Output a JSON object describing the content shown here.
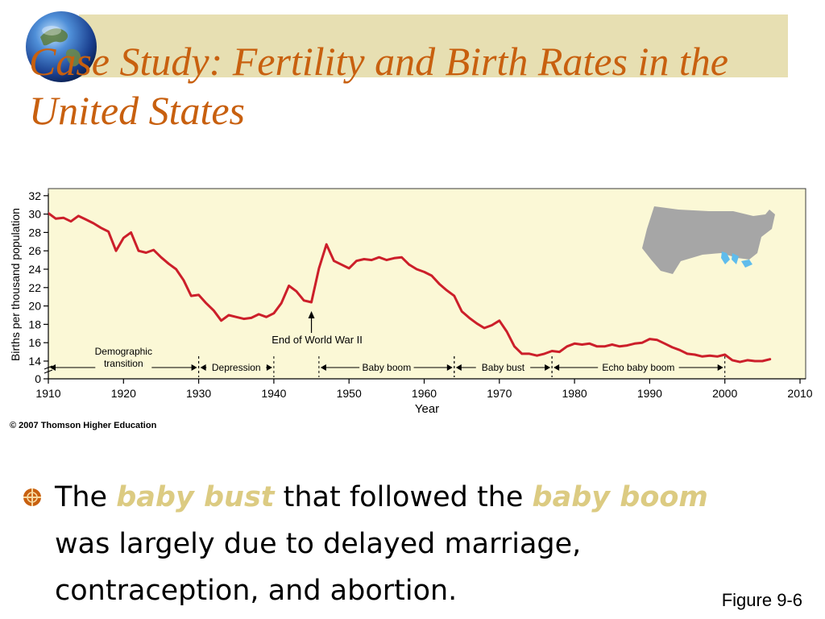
{
  "title": "Case Study: Fertility and Birth Rates in the United States",
  "bullet": {
    "part1": "The",
    "em1": "baby bust",
    "part2": "that followed the",
    "em2": "baby boom",
    "part3": "was largely due to delayed marriage, contraception, and abortion."
  },
  "figure_label": "Figure 9-6",
  "copyright": "© 2007 Thomson Higher Education",
  "chart_data": {
    "type": "line",
    "title": "",
    "xlabel": "Year",
    "ylabel": "Births per thousand population",
    "xlim": [
      1910,
      2010
    ],
    "ylim": [
      0,
      32
    ],
    "x_ticks": [
      1910,
      1920,
      1930,
      1940,
      1950,
      1960,
      1970,
      1980,
      1990,
      2000,
      2010
    ],
    "y_ticks": [
      0,
      14,
      16,
      18,
      20,
      22,
      24,
      26,
      28,
      30,
      32
    ],
    "axis_break": true,
    "grid": false,
    "legend": "none",
    "series": [
      {
        "color": "#cc1f2a",
        "x": [
          1910,
          1911,
          1912,
          1913,
          1914,
          1915,
          1916,
          1917,
          1918,
          1919,
          1920,
          1921,
          1922,
          1923,
          1924,
          1925,
          1926,
          1927,
          1928,
          1929,
          1930,
          1931,
          1932,
          1933,
          1934,
          1935,
          1936,
          1937,
          1938,
          1939,
          1940,
          1941,
          1942,
          1943,
          1944,
          1945,
          1946,
          1947,
          1948,
          1949,
          1950,
          1951,
          1952,
          1953,
          1954,
          1955,
          1956,
          1957,
          1958,
          1959,
          1960,
          1961,
          1962,
          1963,
          1964,
          1965,
          1966,
          1967,
          1968,
          1969,
          1970,
          1971,
          1972,
          1973,
          1974,
          1975,
          1976,
          1977,
          1978,
          1979,
          1980,
          1981,
          1982,
          1983,
          1984,
          1985,
          1986,
          1987,
          1988,
          1989,
          1990,
          1991,
          1992,
          1993,
          1994,
          1995,
          1996,
          1997,
          1998,
          1999,
          2000,
          2001,
          2002,
          2003,
          2004,
          2005,
          2006
        ],
        "y": [
          30.1,
          29.5,
          29.6,
          29.2,
          29.8,
          29.4,
          29.0,
          28.5,
          28.1,
          26.0,
          27.4,
          28.0,
          26.0,
          25.8,
          26.1,
          25.3,
          24.6,
          24.0,
          22.8,
          21.1,
          21.2,
          20.3,
          19.5,
          18.4,
          19.0,
          18.8,
          18.6,
          18.7,
          19.1,
          18.8,
          19.2,
          20.3,
          22.2,
          21.6,
          20.6,
          20.4,
          24.1,
          26.7,
          24.9,
          24.5,
          24.1,
          24.9,
          25.1,
          25.0,
          25.3,
          25.0,
          25.2,
          25.3,
          24.5,
          24.0,
          23.7,
          23.3,
          22.4,
          21.7,
          21.1,
          19.4,
          18.7,
          18.1,
          17.6,
          17.9,
          18.4,
          17.2,
          15.6,
          14.8,
          14.8,
          14.6,
          14.8,
          15.1,
          15.0,
          15.6,
          15.9,
          15.8,
          15.9,
          15.6,
          15.6,
          15.8,
          15.6,
          15.7,
          15.9,
          16.0,
          16.4,
          16.3,
          15.9,
          15.5,
          15.2,
          14.8,
          14.7,
          14.5,
          14.6,
          14.5,
          14.7,
          14.1,
          13.9,
          14.1,
          14.0,
          14.0,
          14.2
        ]
      }
    ],
    "annotations": [
      {
        "text": "End of World War II",
        "x": 1945
      }
    ],
    "periods": [
      {
        "label": "Demographic transition",
        "start": 1910,
        "end": 1930
      },
      {
        "label": "Depression",
        "start": 1930,
        "end": 1940
      },
      {
        "label": "Baby boom",
        "start": 1946,
        "end": 1964
      },
      {
        "label": "Baby bust",
        "start": 1964,
        "end": 1977
      },
      {
        "label": "Echo baby boom",
        "start": 1977,
        "end": 2000
      }
    ]
  }
}
